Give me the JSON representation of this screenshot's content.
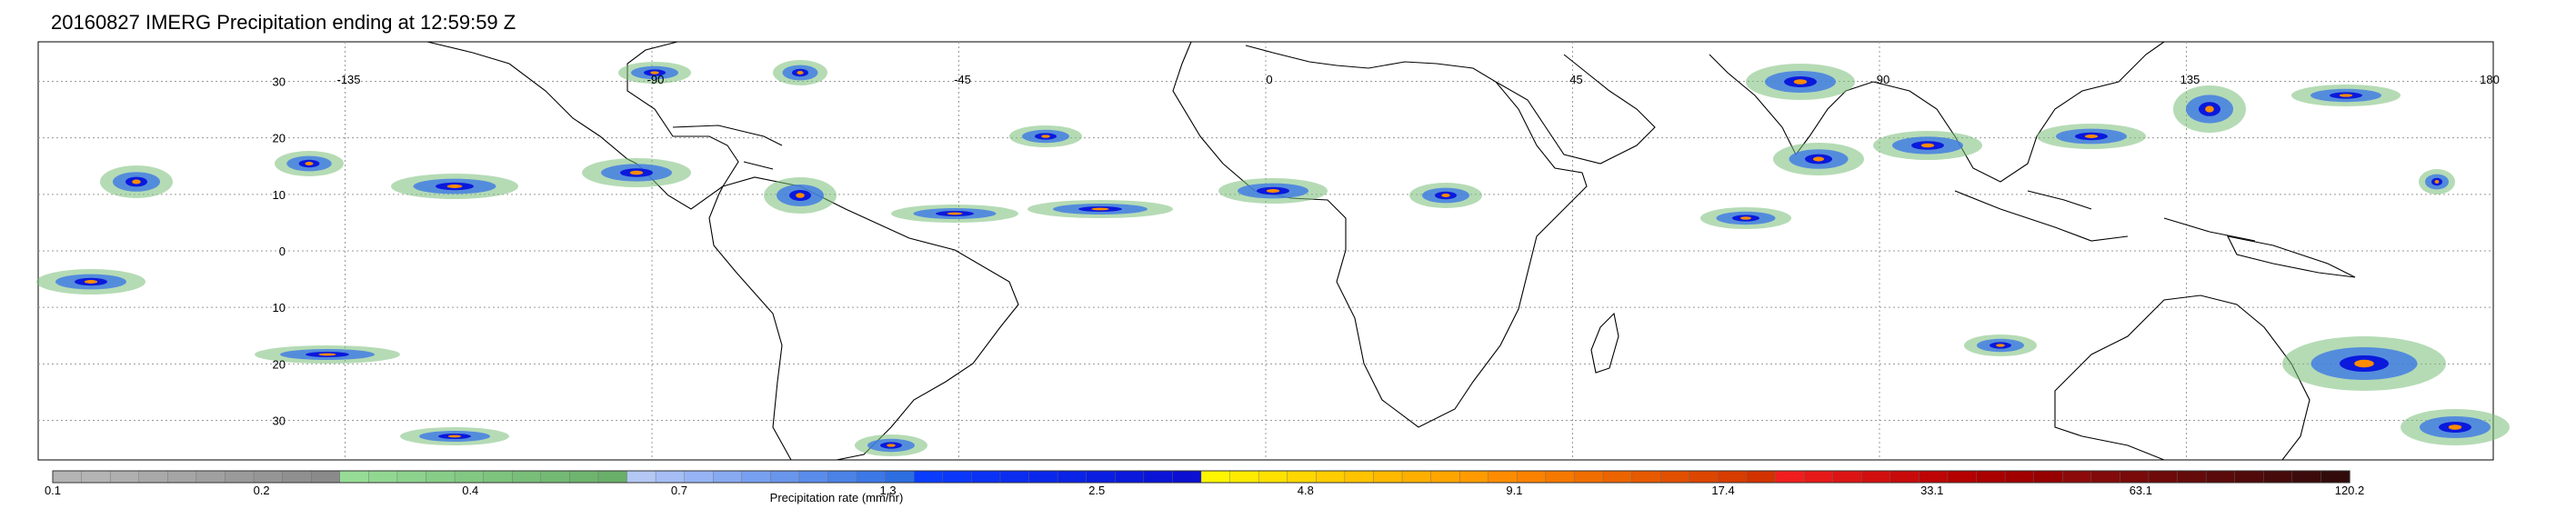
{
  "title": "20160827 IMERG Precipitation ending at 12:59:59 Z",
  "map": {
    "lon_range": [
      -180,
      180
    ],
    "lat_range": [
      -37,
      37
    ],
    "grid": true,
    "lon_tick_labels": [
      "-135",
      "-90",
      "-45",
      "0",
      "45",
      "90",
      "135",
      "180"
    ],
    "lat_tick_labels": [
      "30",
      "20",
      "10",
      "0",
      "10",
      "20",
      "30"
    ]
  },
  "colorbar": {
    "label": "Precipitation rate (mm/hr)",
    "tick_labels": [
      "0.1",
      "0.2",
      "0.4",
      "0.7",
      "1.3",
      "2.5",
      "4.8",
      "9.1",
      "17.4",
      "33.1",
      "63.1",
      "120.2"
    ],
    "colors": [
      "#b4b4b4",
      "#b4b4b4",
      "#afafaf",
      "#a9a9a9",
      "#a5a5a5",
      "#a0a0a0",
      "#9a9a9a",
      "#959595",
      "#8f8f8f",
      "#8a8a8a",
      "#96dc96",
      "#91d791",
      "#8cd28c",
      "#87cd87",
      "#82c882",
      "#7dc37d",
      "#78be78",
      "#73b973",
      "#6eb46e",
      "#69af69",
      "#b4c8f5",
      "#a5bef5",
      "#96b4f5",
      "#87aaf0",
      "#78a0f0",
      "#6996eb",
      "#5a8ceb",
      "#4b82e6",
      "#3c78e6",
      "#2d6ee1",
      "#0a3cff",
      "#0a37fa",
      "#0a32f5",
      "#0a2df0",
      "#0a28eb",
      "#0a23e6",
      "#0a1ee1",
      "#0a19dc",
      "#0a14d7",
      "#0a0fd2",
      "#fff500",
      "#ffeb00",
      "#ffe100",
      "#ffd700",
      "#ffcd00",
      "#ffc300",
      "#ffb900",
      "#ffaf00",
      "#ffa500",
      "#ff9b00",
      "#ff8c00",
      "#fa8200",
      "#f57800",
      "#f06e00",
      "#eb6400",
      "#e65a00",
      "#e15000",
      "#dc4600",
      "#d73c00",
      "#d23200",
      "#f01e1e",
      "#e61919",
      "#dc1414",
      "#d20f0f",
      "#c80a0a",
      "#be0505",
      "#b40000",
      "#aa0000",
      "#a00000",
      "#960000",
      "#8c0a0a",
      "#820a0a",
      "#780a0a",
      "#6e0a0a",
      "#640a0a",
      "#5a0a0a",
      "#500a0a",
      "#460a0a",
      "#3c0a0a",
      "#320a0a"
    ]
  }
}
